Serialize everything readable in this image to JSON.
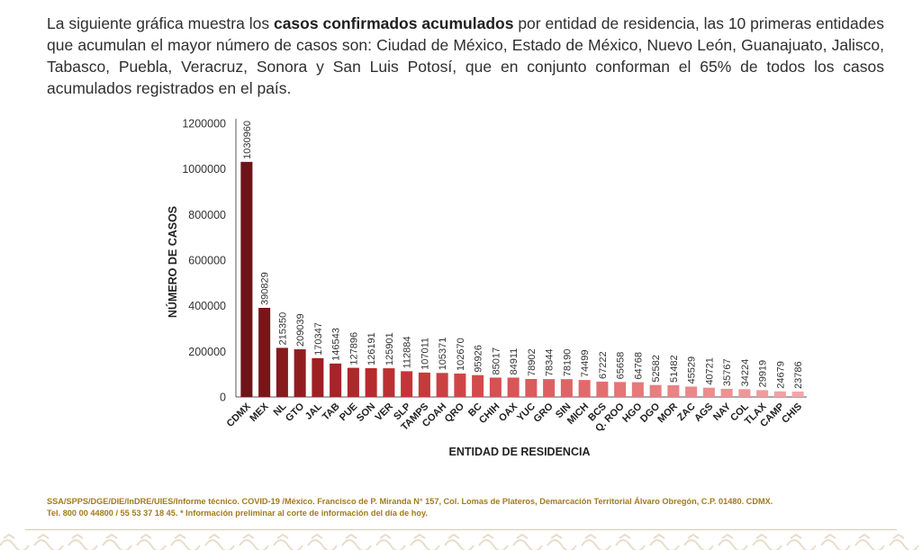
{
  "intro": {
    "part1": "La siguiente gráfica muestra los ",
    "bold": "casos confirmados acumulados",
    "part2": " por entidad de residencia, las 10 primeras entidades que acumulan el mayor número de casos son: Ciudad de México, Estado de México, Nuevo León, Guanajuato, Jalisco, Tabasco, Puebla, Veracruz, Sonora y San Luis Potosí, que en conjunto conforman el 65% de todos los casos acumulados registrados en el país."
  },
  "chart_data": {
    "type": "bar",
    "xlabel": "ENTIDAD DE RESIDENCIA",
    "ylabel": "NÚMERO DE CASOS",
    "ylim": [
      0,
      1200000
    ],
    "yticks": [
      "0",
      "200000",
      "400000",
      "600000",
      "800000",
      "1000000",
      "1200000"
    ],
    "categories": [
      "CDMX",
      "MEX",
      "NL",
      "GTO",
      "JAL",
      "TAB",
      "PUE",
      "SON",
      "VER",
      "SLP",
      "TAMPS",
      "COAH",
      "QRO",
      "BC",
      "CHIH",
      "OAX",
      "YUC",
      "GRO",
      "SIN",
      "MICH",
      "BCS",
      "Q. ROO",
      "HGO",
      "DGO",
      "MOR",
      "ZAC",
      "AGS",
      "NAY",
      "COL",
      "TLAX",
      "CAMP",
      "CHIS"
    ],
    "values": [
      1030960,
      390829,
      215350,
      209039,
      170347,
      146543,
      127896,
      126191,
      125901,
      112884,
      107011,
      105371,
      102670,
      95926,
      85017,
      84911,
      78902,
      78344,
      78190,
      74499,
      67222,
      65658,
      64768,
      52582,
      51482,
      45529,
      40721,
      35767,
      34224,
      29919,
      24679,
      23786
    ],
    "grid": false,
    "legend": "none",
    "bar_colors": [
      "#6e1418",
      "#7a161a",
      "#861a1d",
      "#921d21",
      "#9c2024",
      "#a52428",
      "#ad282b",
      "#b52b2e",
      "#bb3033",
      "#c13538",
      "#c63a3c",
      "#cb4042",
      "#cf4547",
      "#d24b4c",
      "#d55152",
      "#d85657",
      "#da5b5c",
      "#dc6062",
      "#de6566",
      "#e06a6b",
      "#e26f70",
      "#e47475",
      "#e6797a",
      "#e77e7f",
      "#e98384",
      "#ea8889",
      "#ec8d8e",
      "#ed9293",
      "#ee9798",
      "#f09c9d",
      "#f1a1a2",
      "#f2a6a7"
    ]
  },
  "footer": {
    "line1": "SSA/SPPS/DGE/DIE/InDRE/UIES/Informe técnico. COVID-19 /México. Francisco de P. Miranda N° 157, Col. Lomas de Plateros, Demarcación Territorial Álvaro Obregón, C.P. 01480. CDMX.",
    "line2": "Tel. 800 00 44800 / 55 53 37 18 45. * Información preliminar al corte de información del día de hoy."
  },
  "colors": {
    "axis": "#555555",
    "text": "#333333",
    "footer": "#a27a1e",
    "pattern": "#e8dccb"
  }
}
